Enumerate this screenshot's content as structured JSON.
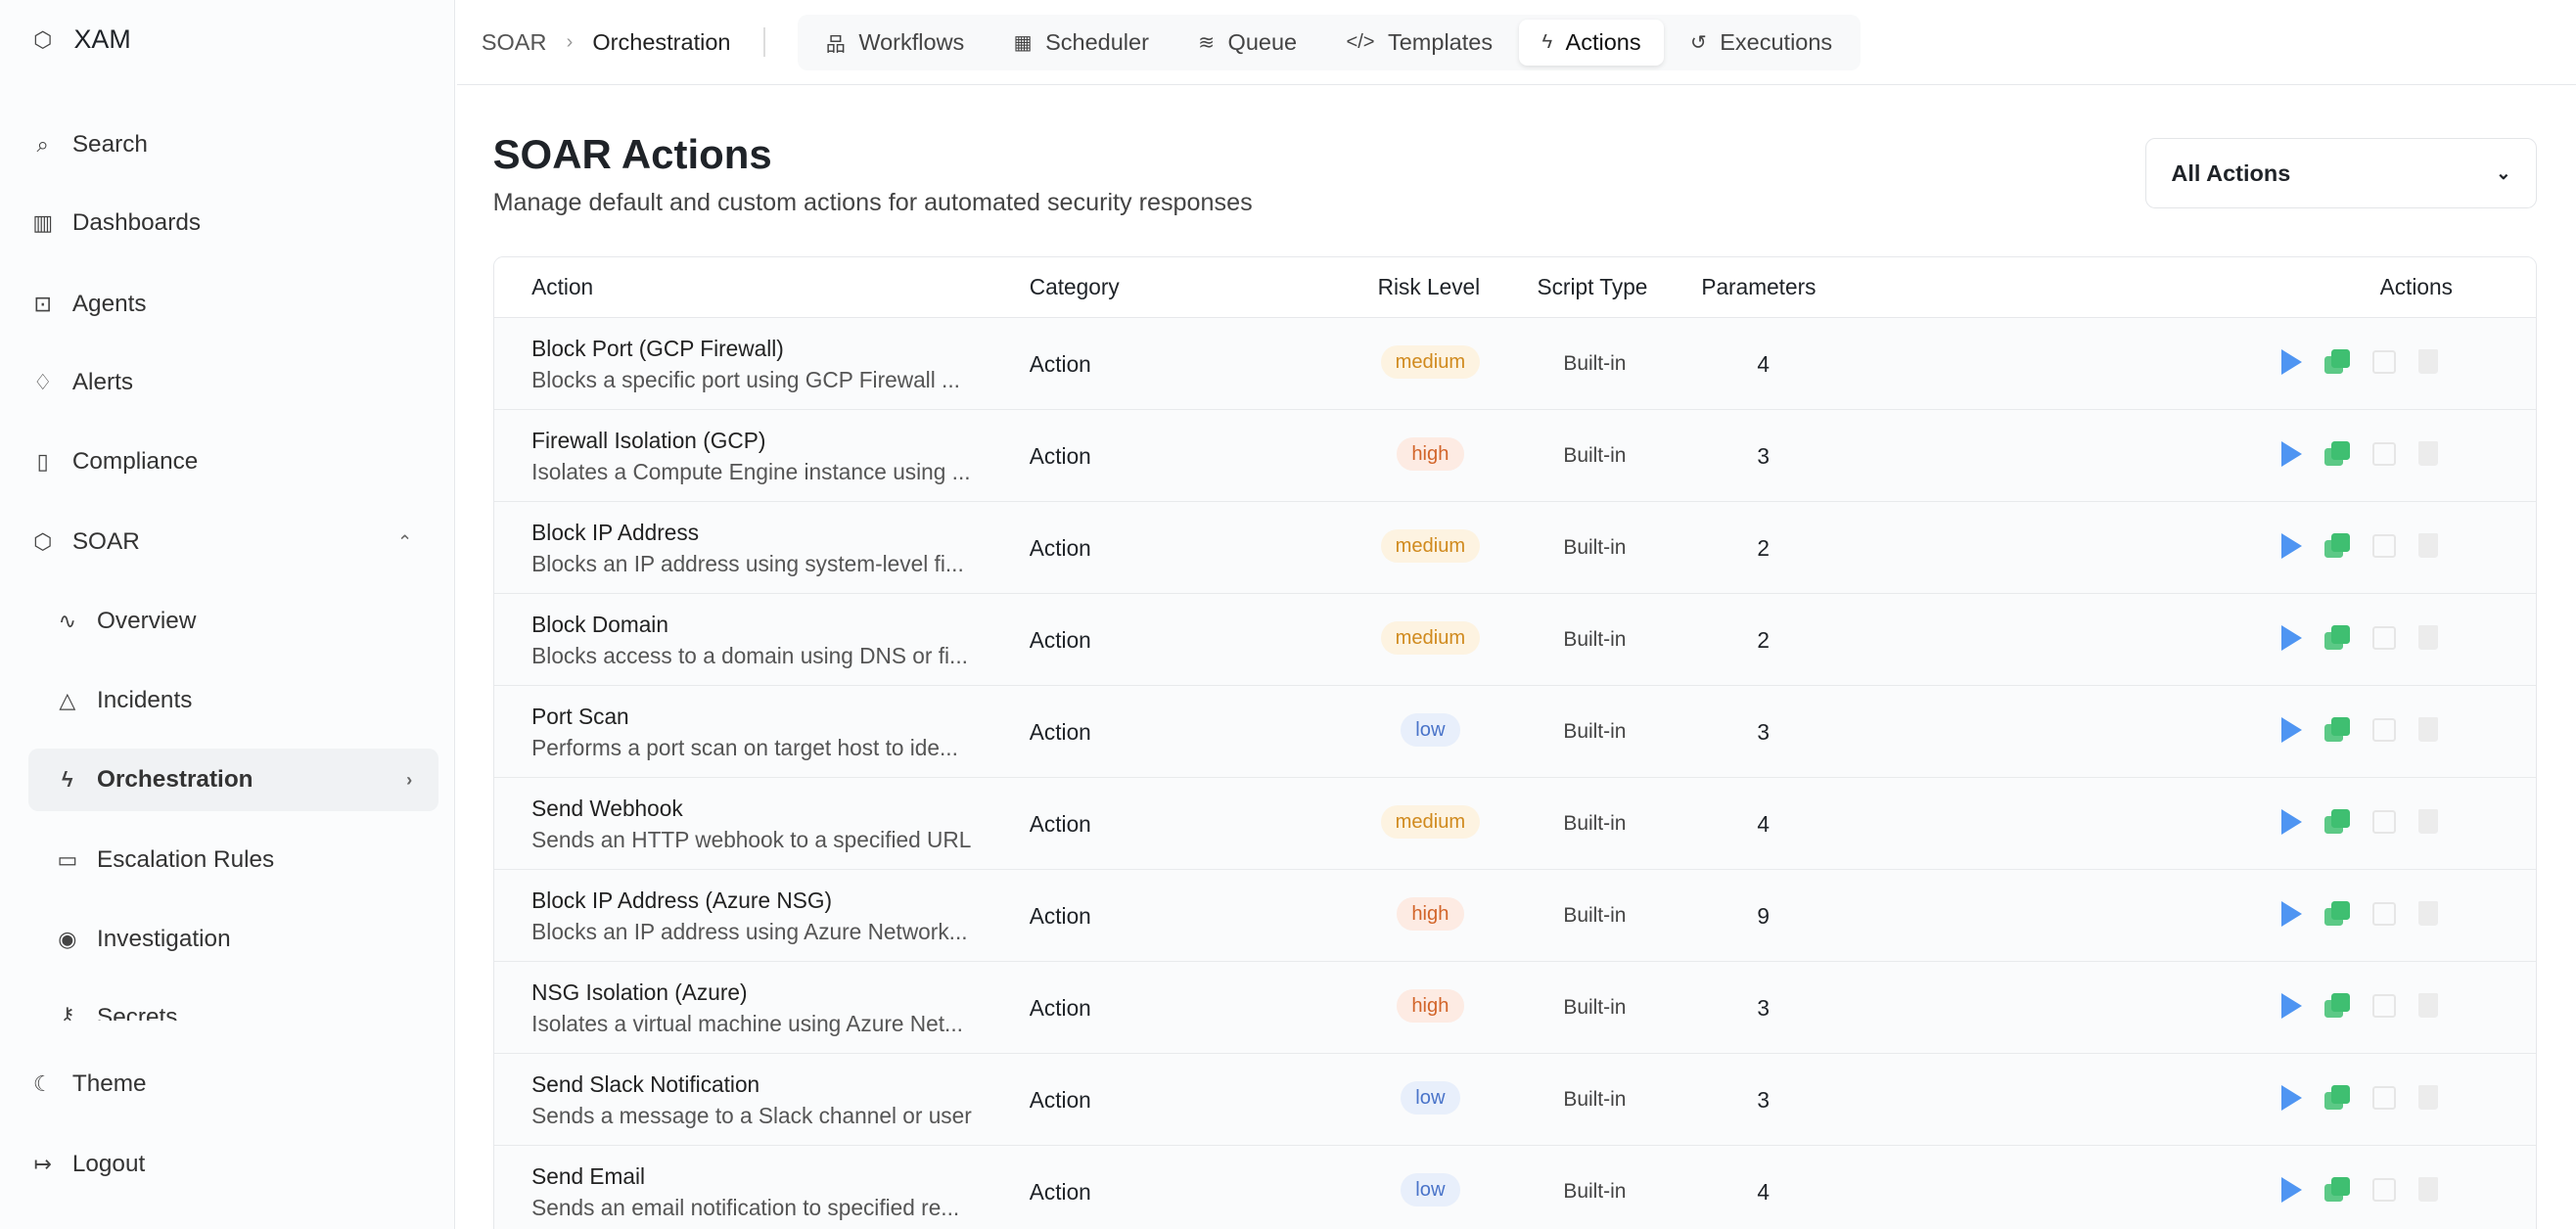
{
  "sidebar": {
    "brand": "XAM",
    "items": [
      {
        "label": "Search",
        "icon": "search-icon",
        "glyph": "⌕"
      },
      {
        "label": "Dashboards",
        "icon": "bar-chart-icon",
        "glyph": "▥"
      },
      {
        "label": "Agents",
        "icon": "bot-icon",
        "glyph": "⊡"
      },
      {
        "label": "Alerts",
        "icon": "bell-icon",
        "glyph": "♢"
      },
      {
        "label": "Compliance",
        "icon": "clipboard-check-icon",
        "glyph": "▯"
      },
      {
        "label": "SOAR",
        "icon": "shield-cog-icon",
        "glyph": "⬡"
      }
    ],
    "sub_items": [
      {
        "label": "Overview",
        "icon": "activity-icon",
        "glyph": "∿"
      },
      {
        "label": "Incidents",
        "icon": "alert-triangle-icon",
        "glyph": "△"
      },
      {
        "label": "Orchestration",
        "icon": "zap-icon",
        "glyph": "ϟ"
      },
      {
        "label": "Escalation Rules",
        "icon": "calendar-icon",
        "glyph": "▭"
      },
      {
        "label": "Investigation",
        "icon": "eye-icon",
        "glyph": "◉"
      },
      {
        "label": "Secrets",
        "icon": "key-icon",
        "glyph": "⚷"
      }
    ],
    "theme": "Theme",
    "logout": "Logout"
  },
  "breadcrumb": {
    "root": "SOAR",
    "current": "Orchestration"
  },
  "tabs": [
    {
      "label": "Workflows",
      "glyph": "品"
    },
    {
      "label": "Scheduler",
      "glyph": "▦"
    },
    {
      "label": "Queue",
      "glyph": "≋"
    },
    {
      "label": "Templates",
      "glyph": "</>"
    },
    {
      "label": "Actions",
      "glyph": "ϟ"
    },
    {
      "label": "Executions",
      "glyph": "↺"
    }
  ],
  "page": {
    "title": "SOAR Actions",
    "subtitle": "Manage default and custom actions for automated security responses",
    "filter": "All Actions"
  },
  "table": {
    "headers": [
      "Action",
      "Category",
      "Risk Level",
      "Script Type",
      "Parameters",
      "Actions"
    ],
    "risk_colors": {
      "medium": {
        "fg": "#d08a1e",
        "bg": "#fdf3e1"
      },
      "high": {
        "fg": "#d2652a",
        "bg": "#fdebe3"
      },
      "low": {
        "fg": "#4a74c9",
        "bg": "#e8effb"
      }
    },
    "rows": [
      {
        "name": "Block Port (GCP Firewall)",
        "desc": "Blocks a specific port using GCP Firewall ...",
        "category": "Action",
        "risk": "medium",
        "type": "Built-in",
        "params": "4"
      },
      {
        "name": "Firewall Isolation (GCP)",
        "desc": "Isolates a Compute Engine instance using ...",
        "category": "Action",
        "risk": "high",
        "type": "Built-in",
        "params": "3"
      },
      {
        "name": "Block IP Address",
        "desc": "Blocks an IP address using system-level fi...",
        "category": "Action",
        "risk": "medium",
        "type": "Built-in",
        "params": "2"
      },
      {
        "name": "Block Domain",
        "desc": "Blocks access to a domain using DNS or fi...",
        "category": "Action",
        "risk": "medium",
        "type": "Built-in",
        "params": "2"
      },
      {
        "name": "Port Scan",
        "desc": "Performs a port scan on target host to ide...",
        "category": "Action",
        "risk": "low",
        "type": "Built-in",
        "params": "3"
      },
      {
        "name": "Send Webhook",
        "desc": "Sends an HTTP webhook to a specified URL",
        "category": "Action",
        "risk": "medium",
        "type": "Built-in",
        "params": "4"
      },
      {
        "name": "Block IP Address (Azure NSG)",
        "desc": "Blocks an IP address using Azure Network...",
        "category": "Action",
        "risk": "high",
        "type": "Built-in",
        "params": "9"
      },
      {
        "name": "NSG Isolation (Azure)",
        "desc": "Isolates a virtual machine using Azure Net...",
        "category": "Action",
        "risk": "high",
        "type": "Built-in",
        "params": "3"
      },
      {
        "name": "Send Slack Notification",
        "desc": "Sends a message to a Slack channel or user",
        "category": "Action",
        "risk": "low",
        "type": "Built-in",
        "params": "3"
      },
      {
        "name": "Send Email",
        "desc": "Sends an email notification to specified re...",
        "category": "Action",
        "risk": "low",
        "type": "Built-in",
        "params": "4"
      }
    ]
  }
}
